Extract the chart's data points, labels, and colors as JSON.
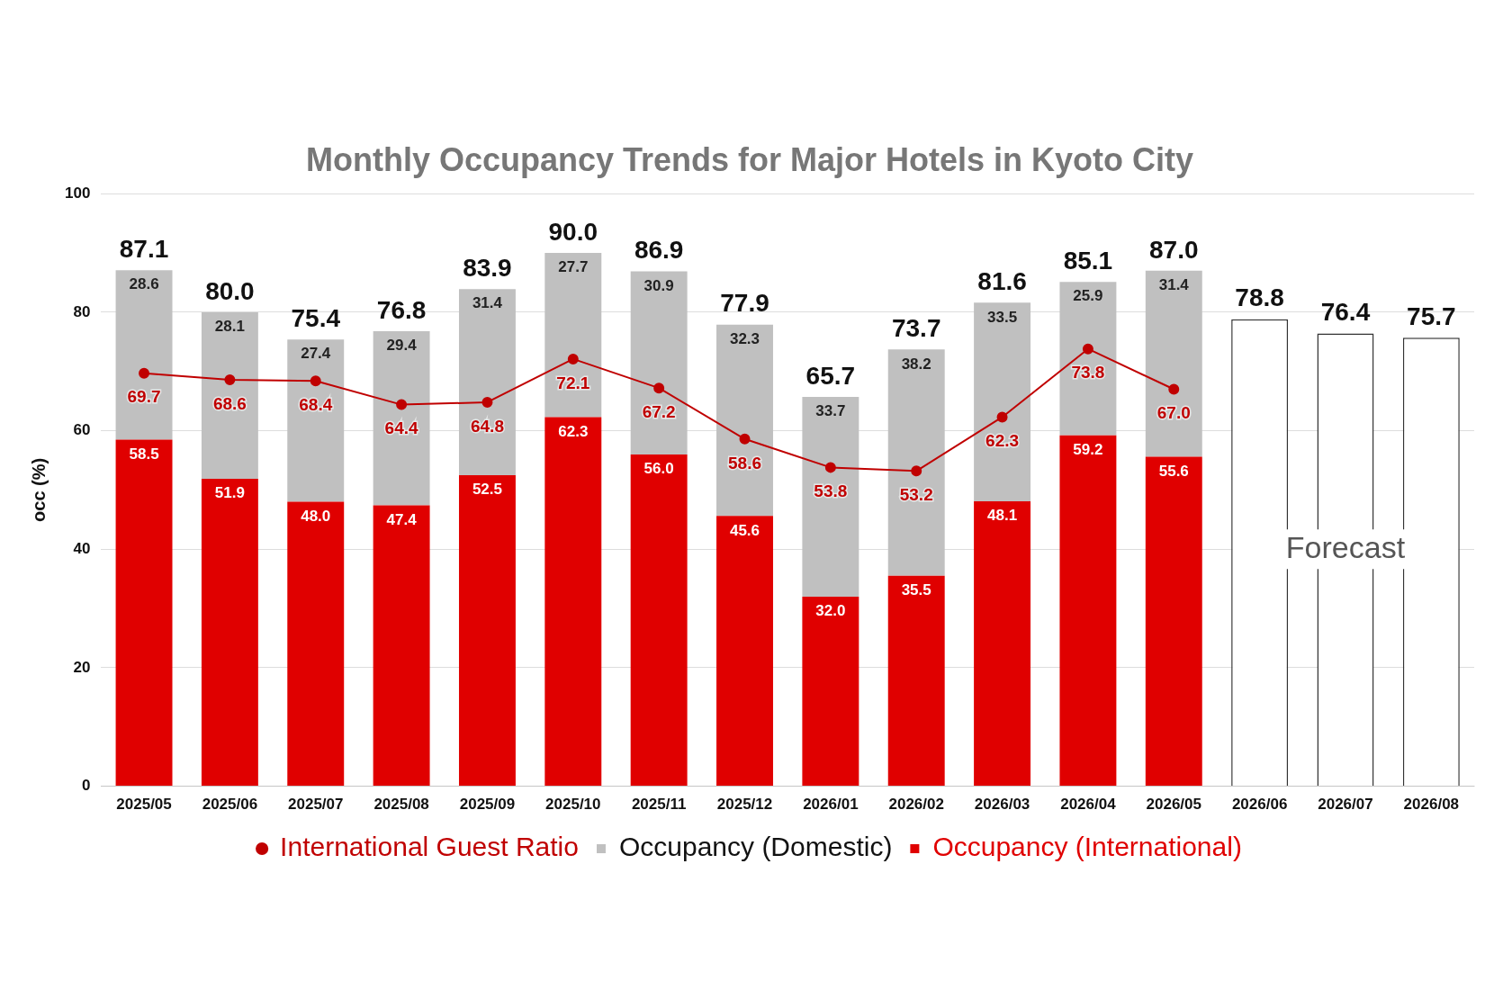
{
  "chart_data": {
    "type": "bar",
    "title": "Monthly Occupancy Trends for Major Hotels in Kyoto City",
    "ylabel": "occ (%)",
    "categories": [
      "2025/05",
      "2025/06",
      "2025/07",
      "2025/08",
      "2025/09",
      "2025/10",
      "2025/11",
      "2025/12",
      "2026/01",
      "2026/02",
      "2026/03",
      "2026/04",
      "2026/05",
      "2026/06",
      "2026/07",
      "2026/08"
    ],
    "stacked": true,
    "ylim": [
      0,
      100
    ],
    "yticks": [
      0,
      20,
      40,
      60,
      80,
      100
    ],
    "grid": "y",
    "legend": "bottom",
    "marker": "circle",
    "series": [
      {
        "name": "International Guest Ratio",
        "type": "line",
        "color": "#c00000",
        "values": [
          69.7,
          68.6,
          68.4,
          64.4,
          64.8,
          72.1,
          67.2,
          58.6,
          53.8,
          53.2,
          62.3,
          73.8,
          67.0,
          null,
          null,
          null
        ],
        "value_labels": [
          "69.7",
          "68.6",
          "68.4",
          "64.4",
          "64.8",
          "72.1",
          "67.2",
          "58.6",
          "53.8",
          "53.2",
          "62.3",
          "73.8",
          "67.0",
          null,
          null,
          null
        ]
      },
      {
        "name": "Occupancy (International)",
        "color": "#e00000",
        "values": [
          58.5,
          51.9,
          48.0,
          47.4,
          52.5,
          62.3,
          56.0,
          45.6,
          32.0,
          35.5,
          48.1,
          59.2,
          55.6,
          null,
          null,
          null
        ],
        "value_labels": [
          "58.5",
          "51.9",
          "48.0",
          "47.4",
          "52.5",
          "62.3",
          "56.0",
          "45.6",
          "32.0",
          "35.5",
          "48.1",
          "59.2",
          "55.6",
          null,
          null,
          null
        ]
      },
      {
        "name": "Occupancy (Domestic)",
        "color": "#c0c0c0",
        "values": [
          28.6,
          28.1,
          27.4,
          29.4,
          31.4,
          27.7,
          30.9,
          32.3,
          33.7,
          38.2,
          33.5,
          25.9,
          31.4,
          null,
          null,
          null
        ],
        "value_labels": [
          "28.6",
          "28.1",
          "27.4",
          "29.4",
          "31.4",
          "27.7",
          "30.9",
          "32.3",
          "33.7",
          "38.2",
          "33.5",
          "25.9",
          "31.4",
          null,
          null,
          null
        ]
      },
      {
        "color": "#ffffff",
        "values": [
          null,
          null,
          null,
          null,
          null,
          null,
          null,
          null,
          null,
          null,
          null,
          null,
          null,
          78.8,
          76.4,
          75.7
        ],
        "value_labels": [
          null,
          null,
          null,
          null,
          null,
          null,
          null,
          null,
          null,
          null,
          null,
          null,
          null,
          "78.8",
          "76.4",
          "75.7"
        ]
      }
    ],
    "totals": [
      "87.1",
      "80.0",
      "75.4",
      "76.8",
      "83.9",
      "90.0",
      "86.9",
      "77.9",
      "65.7",
      "73.7",
      "81.6",
      "85.1",
      "87.0",
      null,
      null,
      null
    ],
    "annotations": [
      "Forecast"
    ]
  }
}
